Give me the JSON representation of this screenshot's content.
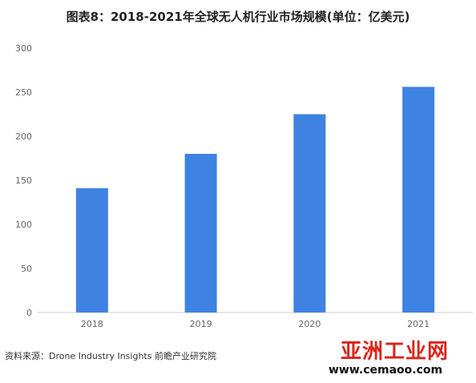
{
  "chart_data": {
    "type": "bar",
    "title": "图表8：2018-2021年全球无人机行业市场规模(单位：亿美元)",
    "categories": [
      "2018",
      "2019",
      "2020",
      "2021"
    ],
    "values": [
      141,
      180,
      225,
      256
    ],
    "ylim": [
      0,
      300
    ],
    "yticks": [
      0,
      50,
      100,
      150,
      200,
      250,
      300
    ],
    "grid": false,
    "legend": "none",
    "bar_color": "#3f83e2"
  },
  "source": "资料来源：Drone Industry Insights 前瞻产业研究院",
  "watermark": {
    "site": "亚洲工业网",
    "domain": "www.cemaoo.com"
  }
}
